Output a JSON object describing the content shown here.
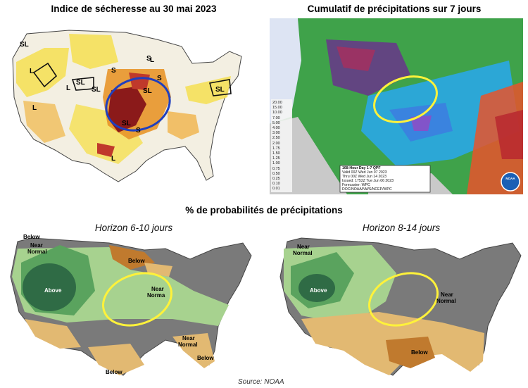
{
  "drought_map": {
    "title": "Indice de sécheresse au 30 mai 2023",
    "labels": {
      "SL": "SL",
      "L": "L",
      "S": "S"
    }
  },
  "precip_map": {
    "title": "Cumulatif de précipitations sur 7 jours",
    "legend_values": [
      "20.00",
      "15.00",
      "10.00",
      "7.00",
      "5.00",
      "4.00",
      "3.00",
      "2.50",
      "2.00",
      "1.75",
      "1.50",
      "1.25",
      "1.00",
      "0.75",
      "0.50",
      "0.25",
      "0.10",
      "0.01"
    ],
    "info_lines": [
      "168-Hour Day 1-7 QPF",
      "Valid 00Z Wed Jun 07 2023",
      "Thru 00Z Wed Jun 14 2023",
      "Issued: 1752Z Tue Jun 06 2023",
      "Forecaster: WPC",
      "DOC/NOAA/NWS/NCEP/WPC"
    ],
    "logo_text": "NOAA"
  },
  "outlook_heading": "% de probabilités de précipitations",
  "outlook_6_10": {
    "title": "Horizon 6-10 jours",
    "labels": {
      "below_nw": "Below",
      "near_normal_nw_1": "Near",
      "near_normal_nw_2": "Normal",
      "below_north": "Below",
      "above": "Above",
      "near_center_1": "Near",
      "near_center_2": "Norma",
      "near_se_1": "Near",
      "near_se_2": "Normal",
      "below_fl": "Below",
      "below_tx": "Below"
    }
  },
  "outlook_8_14": {
    "title": "Horizon 8-14 jours",
    "labels": {
      "near_nw_1": "Near",
      "near_nw_2": "Normal",
      "above": "Above",
      "near_east_1": "Near",
      "near_east_2": "Normal",
      "below_south": "Below"
    }
  },
  "source": "Source: NOAA",
  "colors": {
    "drought_dark": "#8b1a1a",
    "drought_orange": "#e8952a",
    "drought_yellow": "#f5e05a",
    "circle_blue": "#1f3fbf",
    "circle_yellow": "#fff23a",
    "above_dark": "#2f6b45",
    "above_mid": "#5aa35e",
    "above_light": "#a7d28f",
    "near_normal": "#7a7a7a",
    "below_light": "#e2b972",
    "below_dark": "#c07a2e"
  }
}
